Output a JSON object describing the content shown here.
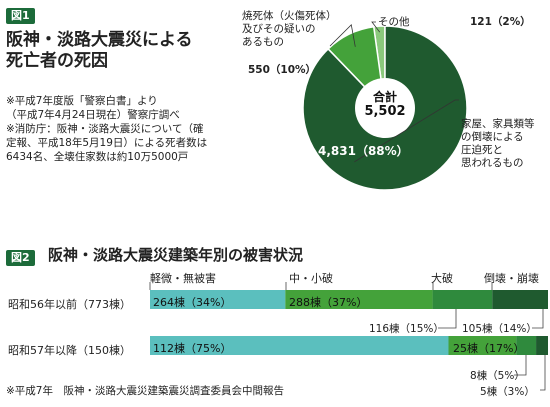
{
  "fig1": {
    "tag": "図1",
    "title_lines": [
      "阪神・淡路大震災による",
      "死亡者の死因"
    ],
    "notes": [
      "※平成7年度版「警察白書」より",
      "（平成7年4月24日現在）警察庁調べ",
      "※消防庁：阪神・淡路大震災について（確",
      "定報、平成18年5月19日）による死者数は",
      "6434名、全壊住家数は約10万5000戸"
    ],
    "chart_data": {
      "type": "pie",
      "center_label": "合計",
      "center_value": "5,502",
      "slices": [
        {
          "label_lines": [
            "家屋、家具類等",
            "の倒壊による",
            "圧迫死と",
            "思われるもの"
          ],
          "value": 4831,
          "value_label": "4,831（88%）",
          "color": "#1f5a2f"
        },
        {
          "label_lines": [
            "焼死体（火傷死体）",
            "及びその疑いの",
            "あるもの"
          ],
          "value": 550,
          "value_label": "550（10%）",
          "color": "#44a23a"
        },
        {
          "label_lines": [
            "その他"
          ],
          "value": 121,
          "value_label": "121（2%）",
          "color": "#8bc97c"
        }
      ]
    }
  },
  "fig2": {
    "tag": "図2",
    "title": "阪神・淡路大震災建築年別の被害状況",
    "source": "※平成7年　阪神・淡路大震災建築震災調査委員会中間報告",
    "chart_data": {
      "type": "bar",
      "stacked": true,
      "orientation": "horizontal",
      "categories": [
        "軽微・無被害",
        "中・小破",
        "大破",
        "倒壊・崩壊"
      ],
      "colors": [
        "#5bbfbe",
        "#44a23a",
        "#2f8a3d",
        "#1f5a2f"
      ],
      "rows": [
        {
          "label": "昭和56年以前（773棟）",
          "values": [
            34,
            37,
            15,
            14
          ],
          "labels": [
            "264棟（34%）",
            "288棟（37%）",
            "116棟（15%）",
            "105棟（14%）"
          ]
        },
        {
          "label": "昭和57年以降（150棟）",
          "values": [
            75,
            17,
            5,
            3
          ],
          "labels": [
            "112棟（75%）",
            "25棟（17%）",
            "8棟（5%）",
            "5棟（3%）"
          ]
        }
      ]
    }
  }
}
